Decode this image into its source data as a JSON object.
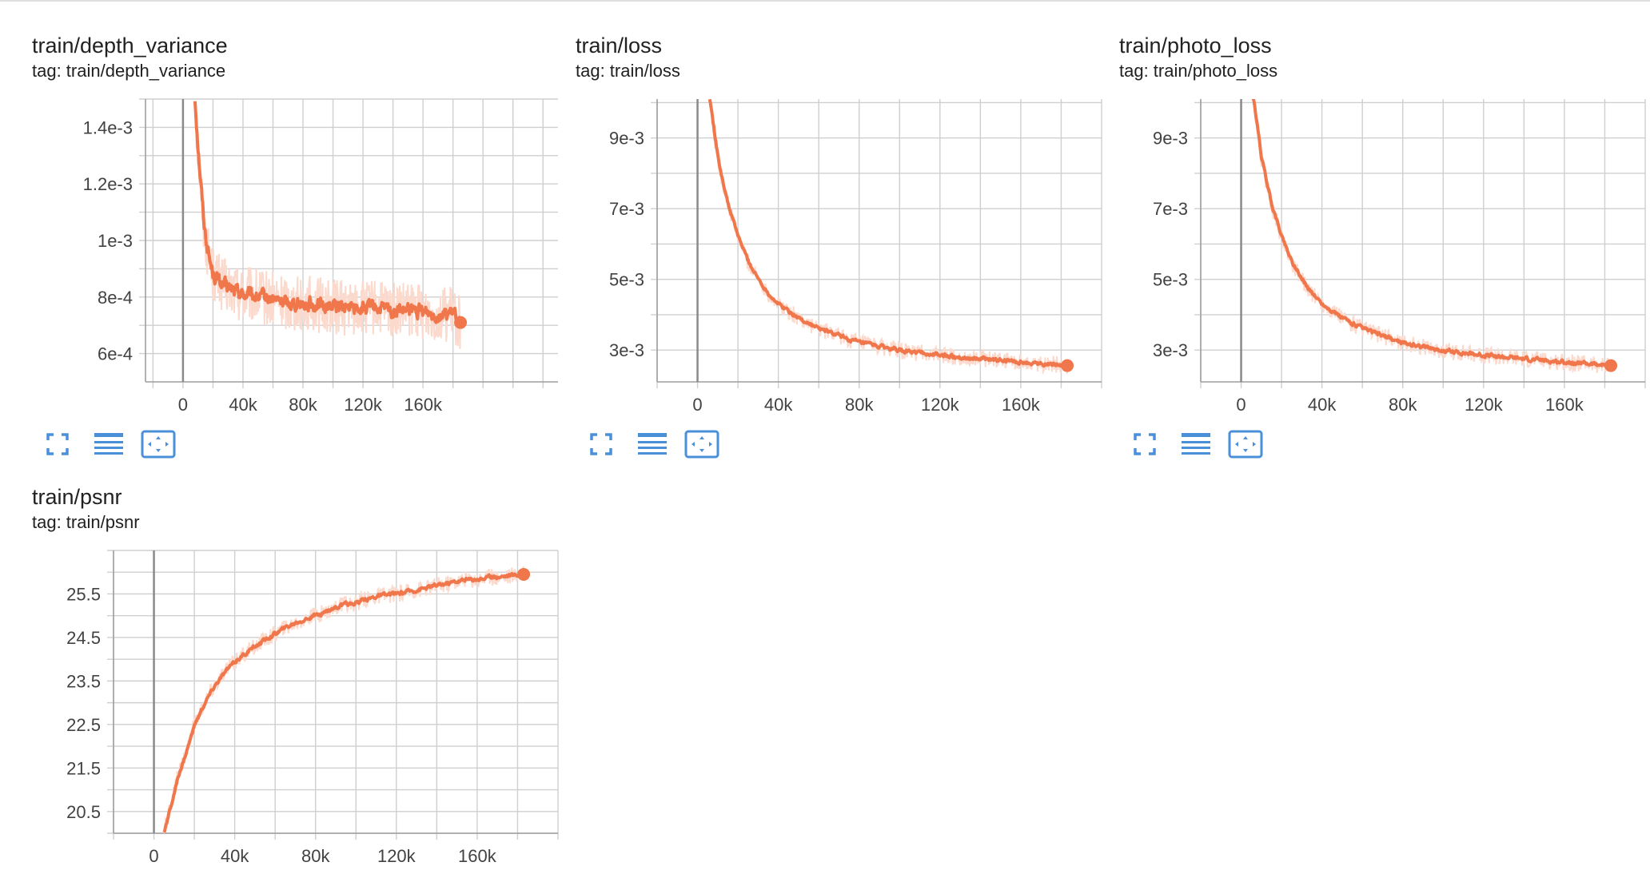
{
  "colors": {
    "series": "#f0764b",
    "series_faint": "#fbd9cc",
    "grid": "#cfcfcf",
    "axis": "#9e9e9e",
    "zero_line": "#8a8a8a",
    "icon": "#4a90d9"
  },
  "icons": [
    "fullscreen-icon",
    "data-table-icon",
    "fit-domain-icon"
  ],
  "cards": [
    {
      "title": "train/depth_variance",
      "tag": "tag: train/depth_variance",
      "chart_data": {
        "type": "line",
        "title": "train/depth_variance",
        "xlabel": "",
        "ylabel": "",
        "xlim": [
          -25000,
          250000
        ],
        "ylim": [
          0.0005,
          0.0015
        ],
        "x_ticks": [
          0,
          40000,
          80000,
          120000,
          160000
        ],
        "x_tick_labels": [
          "0",
          "40k",
          "80k",
          "120k",
          "160k"
        ],
        "y_ticks": [
          0.0006,
          0.0008,
          0.001,
          0.0012,
          0.0014
        ],
        "y_tick_labels": [
          "6e-4",
          "8e-4",
          "1e-3",
          "1.2e-3",
          "1.4e-3"
        ],
        "grid": true,
        "legend": "none",
        "series": [
          {
            "name": "",
            "x": [
              8000,
              10000,
              12000,
              14000,
              16000,
              18000,
              20000,
              25000,
              30000,
              40000,
              50000,
              60000,
              70000,
              80000,
              90000,
              100000,
              110000,
              120000,
              130000,
              140000,
              150000,
              160000,
              170000,
              180000,
              185000
            ],
            "y": [
              0.0015,
              0.00132,
              0.00118,
              0.00105,
              0.00098,
              0.00092,
              0.00088,
              0.00085,
              0.00083,
              0.00081,
              0.0008,
              0.00079,
              0.00078,
              0.00078,
              0.00077,
              0.00077,
              0.00076,
              0.00076,
              0.00076,
              0.00075,
              0.00075,
              0.00075,
              0.00074,
              0.00074,
              0.00071
            ]
          }
        ]
      }
    },
    {
      "title": "train/loss",
      "tag": "tag: train/loss",
      "chart_data": {
        "type": "line",
        "title": "train/loss",
        "xlabel": "",
        "ylabel": "",
        "xlim": [
          -20000,
          200000
        ],
        "ylim": [
          0.0021,
          0.0101
        ],
        "x_ticks": [
          0,
          40000,
          80000,
          120000,
          160000
        ],
        "x_tick_labels": [
          "0",
          "40k",
          "80k",
          "120k",
          "160k"
        ],
        "y_ticks": [
          0.003,
          0.005,
          0.007,
          0.009
        ],
        "y_tick_labels": [
          "3e-3",
          "5e-3",
          "7e-3",
          "9e-3"
        ],
        "grid": true,
        "legend": "none",
        "series": [
          {
            "name": "",
            "x": [
              6000,
              10000,
              15000,
              20000,
              25000,
              30000,
              35000,
              40000,
              50000,
              60000,
              70000,
              80000,
              90000,
              100000,
              110000,
              120000,
              130000,
              140000,
              150000,
              160000,
              170000,
              180000,
              183000
            ],
            "y": [
              0.0101,
              0.0084,
              0.0071,
              0.0062,
              0.0055,
              0.005,
              0.0046,
              0.0043,
              0.0039,
              0.0036,
              0.0034,
              0.0032,
              0.0031,
              0.00298,
              0.00292,
              0.00285,
              0.0028,
              0.00275,
              0.0027,
              0.00266,
              0.00262,
              0.00258,
              0.00256
            ]
          }
        ]
      }
    },
    {
      "title": "train/photo_loss",
      "tag": "tag: train/photo_loss",
      "chart_data": {
        "type": "line",
        "title": "train/photo_loss",
        "xlabel": "",
        "ylabel": "",
        "xlim": [
          -20000,
          200000
        ],
        "ylim": [
          0.0021,
          0.0101
        ],
        "x_ticks": [
          0,
          40000,
          80000,
          120000,
          160000
        ],
        "x_tick_labels": [
          "0",
          "40k",
          "80k",
          "120k",
          "160k"
        ],
        "y_ticks": [
          0.003,
          0.005,
          0.007,
          0.009
        ],
        "y_tick_labels": [
          "3e-3",
          "5e-3",
          "7e-3",
          "9e-3"
        ],
        "grid": true,
        "legend": "none",
        "series": [
          {
            "name": "",
            "x": [
              6000,
              10000,
              15000,
              20000,
              25000,
              30000,
              35000,
              40000,
              50000,
              60000,
              70000,
              80000,
              90000,
              100000,
              110000,
              120000,
              130000,
              140000,
              150000,
              160000,
              170000,
              180000,
              183000
            ],
            "y": [
              0.0101,
              0.0084,
              0.0071,
              0.0062,
              0.0055,
              0.005,
              0.0046,
              0.0043,
              0.0039,
              0.0036,
              0.0034,
              0.0032,
              0.0031,
              0.00298,
              0.00292,
              0.00285,
              0.0028,
              0.00275,
              0.0027,
              0.00266,
              0.00262,
              0.00258,
              0.00256
            ]
          }
        ]
      }
    },
    {
      "title": "train/psnr",
      "tag": "tag: train/psnr",
      "chart_data": {
        "type": "line",
        "title": "train/psnr",
        "xlabel": "",
        "ylabel": "",
        "xlim": [
          -20000,
          200000
        ],
        "ylim": [
          20,
          26.5
        ],
        "x_ticks": [
          0,
          40000,
          80000,
          120000,
          160000
        ],
        "x_tick_labels": [
          "0",
          "40k",
          "80k",
          "120k",
          "160k"
        ],
        "y_ticks": [
          20.5,
          21.5,
          22.5,
          23.5,
          24.5,
          25.5
        ],
        "y_tick_labels": [
          "20.5",
          "21.5",
          "22.5",
          "23.5",
          "24.5",
          "25.5"
        ],
        "grid": true,
        "legend": "none",
        "series": [
          {
            "name": "",
            "x": [
              5000,
              8000,
              12000,
              16000,
              20000,
              25000,
              30000,
              35000,
              40000,
              50000,
              60000,
              70000,
              80000,
              90000,
              100000,
              110000,
              120000,
              130000,
              140000,
              150000,
              160000,
              170000,
              180000,
              183000
            ],
            "y": [
              20.0,
              20.6,
              21.3,
              21.9,
              22.5,
              23.0,
              23.4,
              23.7,
              23.95,
              24.3,
              24.6,
              24.85,
              25.0,
              25.2,
              25.3,
              25.45,
              25.5,
              25.6,
              25.7,
              25.8,
              25.85,
              25.9,
              25.95,
              25.95
            ]
          }
        ]
      }
    }
  ]
}
